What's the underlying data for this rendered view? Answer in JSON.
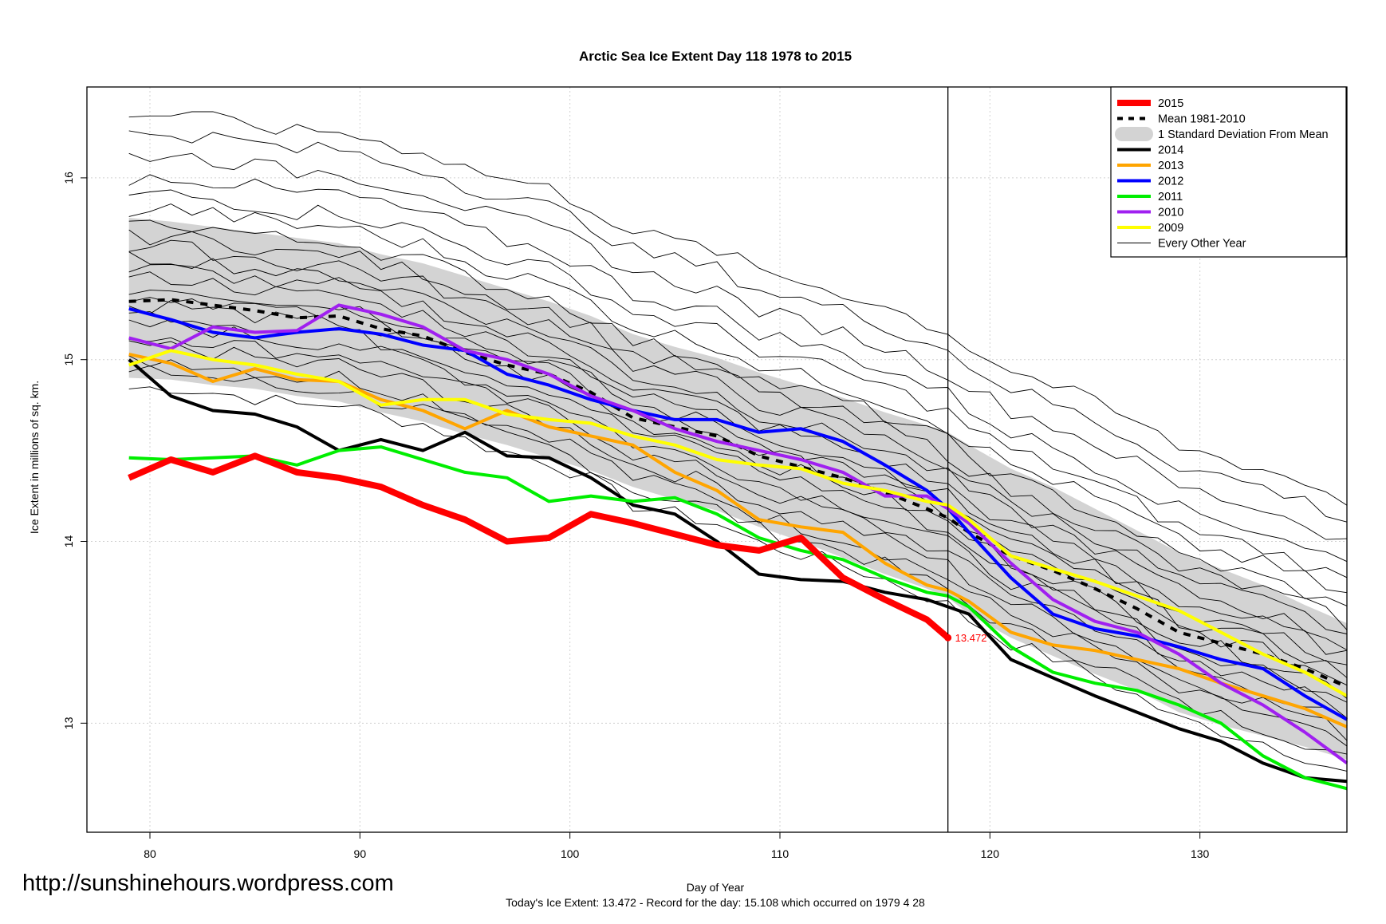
{
  "chart_data": {
    "type": "line",
    "title": "Arctic Sea Ice Extent Day 118 1978 to 2015",
    "xlabel": "Day of Year",
    "ylabel": "Ice Extent in millions of sq. km.",
    "xlim": [
      77,
      137
    ],
    "ylim": [
      12.4,
      16.5
    ],
    "x_ticks": [
      "80",
      "90",
      "100",
      "110",
      "120",
      "130"
    ],
    "y_ticks": [
      "13",
      "14",
      "15",
      "16"
    ],
    "grid": true,
    "legend_position": "top-right",
    "current_day": 118,
    "annotation": "13.472",
    "footer": "Today's Ice Extent: 13.472  - Record for the day: 15.108 which occurred on 1979 4 28",
    "watermark": "http://sunshinehours.wordpress.com",
    "legend": [
      {
        "label": "2015",
        "color": "#ff0000",
        "kind": "thick"
      },
      {
        "label": "Mean 1981-2010",
        "color": "#000000",
        "kind": "dashed"
      },
      {
        "label": "1 Standard Deviation From Mean",
        "color": "#d3d3d3",
        "kind": "band"
      },
      {
        "label": "2014",
        "color": "#000000",
        "kind": "line"
      },
      {
        "label": "2013",
        "color": "#ffa500",
        "kind": "line"
      },
      {
        "label": "2012",
        "color": "#0000ff",
        "kind": "line"
      },
      {
        "label": "2011",
        "color": "#00ee00",
        "kind": "line"
      },
      {
        "label": "2010",
        "color": "#a020f0",
        "kind": "line"
      },
      {
        "label": "2009",
        "color": "#ffff00",
        "kind": "line"
      },
      {
        "label": "Every Other Year",
        "color": "#000000",
        "kind": "thin"
      }
    ],
    "x": [
      79,
      81,
      83,
      85,
      87,
      89,
      91,
      93,
      95,
      97,
      99,
      101,
      103,
      105,
      107,
      109,
      111,
      113,
      115,
      117,
      118,
      119,
      121,
      123,
      125,
      127,
      129,
      131,
      133,
      135,
      137
    ],
    "mean": [
      15.32,
      15.33,
      15.3,
      15.27,
      15.23,
      15.24,
      15.17,
      15.13,
      15.04,
      14.97,
      14.92,
      14.82,
      14.68,
      14.63,
      14.58,
      14.47,
      14.41,
      14.35,
      14.27,
      14.18,
      14.13,
      14.05,
      13.92,
      13.84,
      13.74,
      13.63,
      13.5,
      13.44,
      13.38,
      13.3,
      13.2
    ],
    "std_upper": [
      15.78,
      15.76,
      15.73,
      15.7,
      15.67,
      15.64,
      15.58,
      15.53,
      15.46,
      15.39,
      15.32,
      15.24,
      15.14,
      15.07,
      15.01,
      14.93,
      14.86,
      14.79,
      14.71,
      14.64,
      14.6,
      14.53,
      14.4,
      14.3,
      14.18,
      14.06,
      13.94,
      13.85,
      13.76,
      13.65,
      13.55
    ],
    "std_lower": [
      14.9,
      14.89,
      14.86,
      14.84,
      14.8,
      14.77,
      14.71,
      14.66,
      14.59,
      14.53,
      14.46,
      14.39,
      14.3,
      14.23,
      14.17,
      14.08,
      14.0,
      13.91,
      13.82,
      13.74,
      13.69,
      13.6,
      13.47,
      13.37,
      13.27,
      13.18,
      13.06,
      12.99,
      12.93,
      12.87,
      12.8
    ],
    "series": [
      {
        "name": "2015",
        "color": "#ff0000",
        "values": [
          14.35,
          14.45,
          14.38,
          14.47,
          14.38,
          14.35,
          14.3,
          14.2,
          14.12,
          14.0,
          14.02,
          14.15,
          14.1,
          14.04,
          13.98,
          13.95,
          14.02,
          13.8,
          13.68,
          13.57,
          13.47,
          null,
          null,
          null,
          null,
          null,
          null,
          null,
          null,
          null,
          null
        ]
      },
      {
        "name": "2014",
        "color": "#000000",
        "values": [
          15.0,
          14.8,
          14.72,
          14.7,
          14.63,
          14.5,
          14.56,
          14.5,
          14.6,
          14.47,
          14.46,
          14.35,
          14.2,
          14.15,
          14.0,
          13.82,
          13.79,
          13.78,
          13.72,
          13.68,
          13.64,
          13.6,
          13.35,
          13.25,
          13.15,
          13.06,
          12.97,
          12.9,
          12.78,
          12.7,
          12.68
        ]
      },
      {
        "name": "2013",
        "color": "#ffa500",
        "values": [
          15.03,
          14.98,
          14.88,
          14.95,
          14.89,
          14.88,
          14.78,
          14.72,
          14.62,
          14.72,
          14.63,
          14.58,
          14.53,
          14.38,
          14.28,
          14.12,
          14.08,
          14.05,
          13.88,
          13.76,
          13.73,
          13.67,
          13.5,
          13.43,
          13.4,
          13.35,
          13.3,
          13.22,
          13.15,
          13.08,
          12.98
        ]
      },
      {
        "name": "2012",
        "color": "#0000ff",
        "values": [
          15.28,
          15.22,
          15.15,
          15.12,
          15.15,
          15.17,
          15.14,
          15.08,
          15.05,
          14.92,
          14.86,
          14.78,
          14.72,
          14.67,
          14.67,
          14.6,
          14.62,
          14.55,
          14.42,
          14.28,
          14.18,
          14.05,
          13.8,
          13.6,
          13.52,
          13.48,
          13.42,
          13.35,
          13.3,
          13.15,
          13.02
        ]
      },
      {
        "name": "2011",
        "color": "#00ee00",
        "values": [
          14.46,
          14.45,
          14.46,
          14.47,
          14.42,
          14.5,
          14.52,
          14.45,
          14.38,
          14.35,
          14.22,
          14.25,
          14.22,
          14.24,
          14.15,
          14.02,
          13.95,
          13.9,
          13.8,
          13.72,
          13.7,
          13.64,
          13.42,
          13.28,
          13.22,
          13.18,
          13.1,
          13.0,
          12.82,
          12.7,
          12.64
        ]
      },
      {
        "name": "2010",
        "color": "#a020f0",
        "values": [
          15.12,
          15.06,
          15.18,
          15.15,
          15.16,
          15.3,
          15.25,
          15.18,
          15.05,
          15.0,
          14.92,
          14.8,
          14.72,
          14.62,
          14.55,
          14.5,
          14.45,
          14.38,
          14.25,
          14.25,
          14.18,
          14.1,
          13.88,
          13.68,
          13.56,
          13.5,
          13.38,
          13.22,
          13.1,
          12.95,
          12.78
        ]
      },
      {
        "name": "2009",
        "color": "#ffff00",
        "values": [
          14.97,
          15.05,
          15.0,
          14.97,
          14.92,
          14.88,
          14.75,
          14.78,
          14.78,
          14.7,
          14.67,
          14.65,
          14.58,
          14.53,
          14.45,
          14.42,
          14.4,
          14.32,
          14.28,
          14.22,
          14.2,
          14.12,
          13.92,
          13.85,
          13.78,
          13.7,
          13.62,
          13.5,
          13.38,
          13.28,
          13.15
        ]
      }
    ]
  }
}
